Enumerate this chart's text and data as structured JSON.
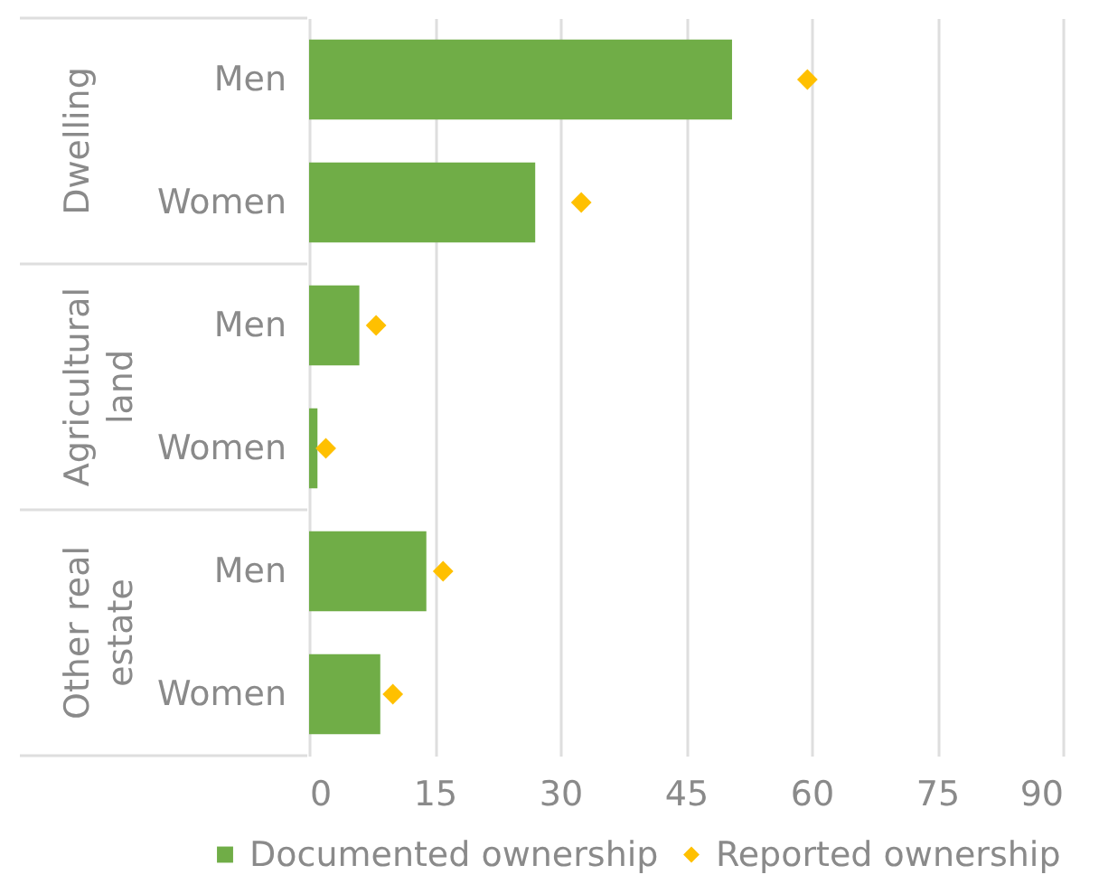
{
  "chart_data": {
    "type": "bar",
    "orientation": "horizontal",
    "categories": [
      "Men",
      "Women",
      "Men",
      "Women",
      "Men",
      "Women"
    ],
    "series": [
      {
        "name": "Documented ownership",
        "color": "#70ad47",
        "values": [
          50.5,
          27,
          6,
          1,
          14,
          8.5
        ]
      },
      {
        "name": "Reported ownership",
        "type": "scatter",
        "marker": "diamond",
        "color": "#ffc000",
        "values": [
          59.5,
          32.5,
          8,
          2,
          16,
          10
        ]
      }
    ],
    "xlim": [
      0,
      90
    ],
    "xticks": [
      0,
      15,
      30,
      45,
      60,
      75,
      90
    ],
    "grid": "x",
    "legend": "bottom",
    "annotations": [
      "Dwelling",
      "Agricultural land",
      "Other real estate"
    ]
  }
}
